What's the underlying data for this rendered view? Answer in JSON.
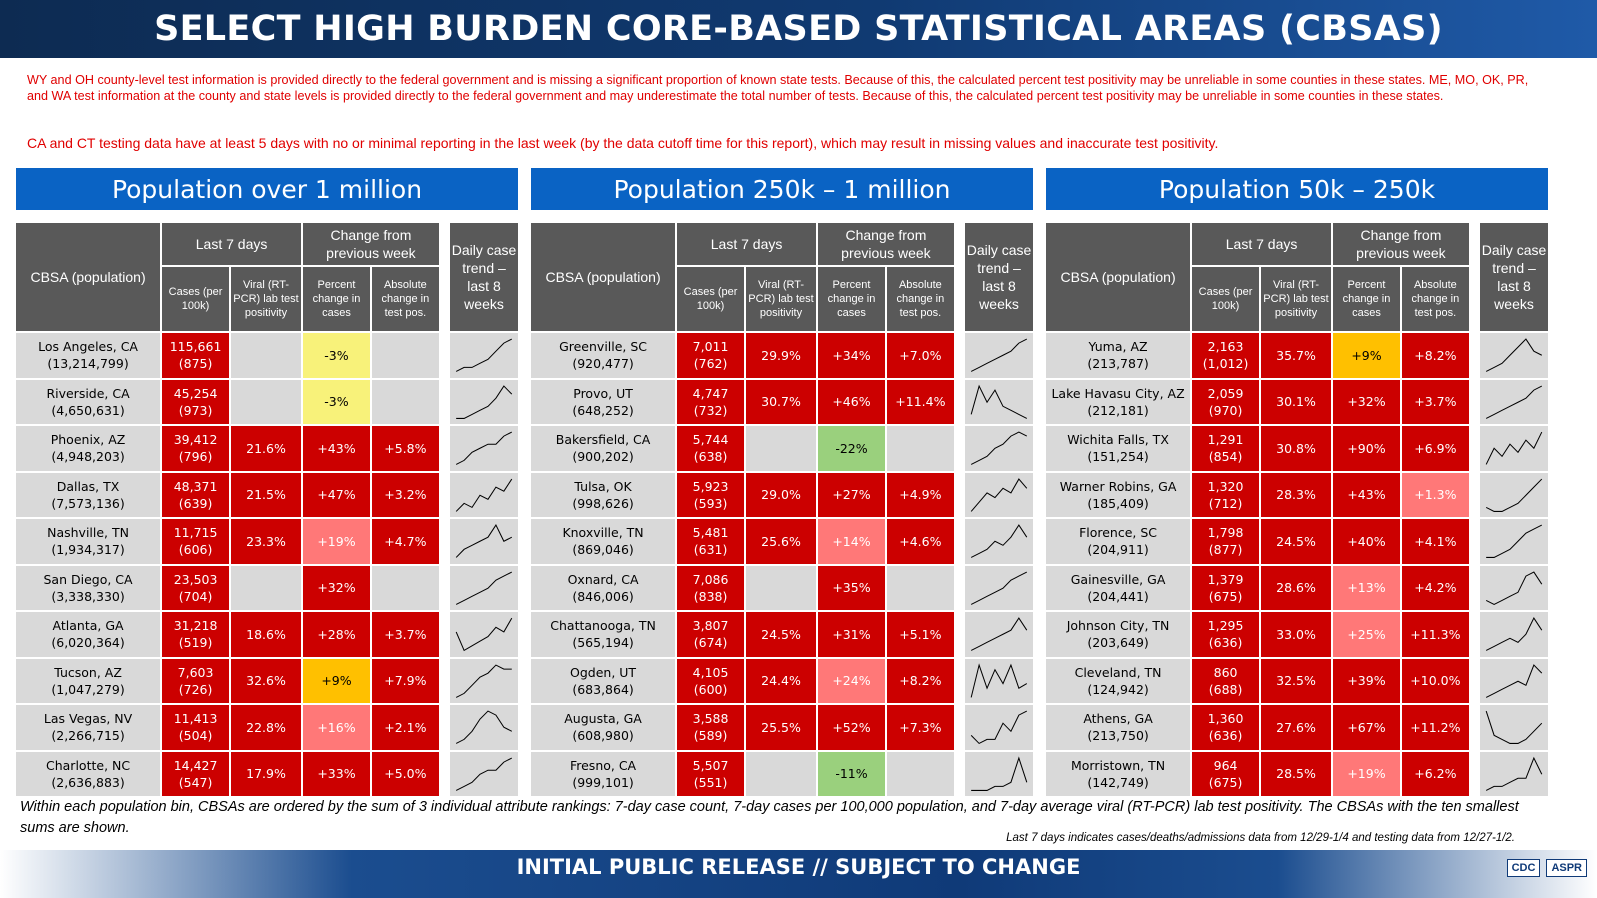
{
  "title": "SELECT HIGH BURDEN CORE-BASED STATISTICAL AREAS (CBSAS)",
  "note1": "WY and OH county-level test information is provided directly to the federal government and is missing a significant proportion of known state tests. Because of this, the calculated percent test positivity may be unreliable in some counties in these states. ME, MO, OK, PR, and WA test information at the county and state levels is provided directly to the federal government and may underestimate the total number of tests. Because of this, the calculated percent test positivity may be unreliable in some counties in these states.",
  "note2": "CA and CT testing data have at least 5 days with no or minimal reporting in the last week (by the data cutoff time for this report), which may result in missing values and inaccurate test positivity.",
  "headers": {
    "cbsa": "CBSA (population)",
    "last7": "Last 7 days",
    "change": "Change from previous week",
    "trend": "Daily case trend – last 8 weeks",
    "cases": "Cases (per 100k)",
    "viral": "Viral (RT-PCR) lab test positivity",
    "pct": "Percent change in cases",
    "abs": "Absolute change in test pos."
  },
  "colors": {
    "red": "#cc0000",
    "light_red": "#ff7878",
    "yellow": "#f8f27a",
    "orange": "#ffc000",
    "green": "#9ad07d",
    "grey": "#d9d9d9"
  },
  "panels": [
    {
      "title": "Population over 1 million",
      "rows": [
        {
          "name": "Los Angeles, CA",
          "pop": "(13,214,799)",
          "cases": "115,661",
          "per": "(875)",
          "pos": "",
          "pct": "-3%",
          "abs": "",
          "pct_color": "yellow",
          "abs_color": "grey",
          "pos_color": "grey",
          "trend": [
            1,
            2,
            2,
            3,
            4,
            6,
            8,
            9
          ]
        },
        {
          "name": "Riverside, CA",
          "pop": "(4,650,631)",
          "cases": "45,254",
          "per": "(973)",
          "pos": "",
          "pct": "-3%",
          "abs": "",
          "pct_color": "yellow",
          "abs_color": "grey",
          "pos_color": "grey",
          "trend": [
            1,
            1,
            2,
            3,
            4,
            6,
            9,
            7
          ]
        },
        {
          "name": "Phoenix, AZ",
          "pop": "(4,948,203)",
          "cases": "39,412",
          "per": "(796)",
          "pos": "21.6%",
          "pct": "+43%",
          "abs": "+5.8%",
          "pct_color": "red",
          "abs_color": "red",
          "pos_color": "red",
          "trend": [
            1,
            2,
            4,
            5,
            6,
            6,
            8,
            9
          ]
        },
        {
          "name": "Dallas, TX",
          "pop": "(7,573,136)",
          "cases": "48,371",
          "per": "(639)",
          "pos": "21.5%",
          "pct": "+47%",
          "abs": "+3.2%",
          "pct_color": "red",
          "abs_color": "red",
          "pos_color": "red",
          "trend": [
            1,
            3,
            2,
            5,
            4,
            7,
            6,
            9
          ]
        },
        {
          "name": "Nashville, TN",
          "pop": "(1,934,317)",
          "cases": "11,715",
          "per": "(606)",
          "pos": "23.3%",
          "pct": "+19%",
          "abs": "+4.7%",
          "pct_color": "light_red",
          "abs_color": "red",
          "pos_color": "red",
          "trend": [
            1,
            3,
            4,
            5,
            6,
            9,
            5,
            6
          ]
        },
        {
          "name": "San Diego, CA",
          "pop": "(3,338,330)",
          "cases": "23,503",
          "per": "(704)",
          "pos": "",
          "pct": "+32%",
          "abs": "",
          "pct_color": "red",
          "abs_color": "grey",
          "pos_color": "grey",
          "trend": [
            1,
            2,
            3,
            4,
            5,
            7,
            8,
            9
          ]
        },
        {
          "name": "Atlanta, GA",
          "pop": "(6,020,364)",
          "cases": "31,218",
          "per": "(519)",
          "pos": "18.6%",
          "pct": "+28%",
          "abs": "+3.7%",
          "pct_color": "red",
          "abs_color": "red",
          "pos_color": "red",
          "trend": [
            6,
            2,
            3,
            4,
            5,
            7,
            6,
            9
          ]
        },
        {
          "name": "Tucson, AZ",
          "pop": "(1,047,279)",
          "cases": "7,603",
          "per": "(726)",
          "pos": "32.6%",
          "pct": "+9%",
          "abs": "+7.9%",
          "pct_color": "orange",
          "abs_color": "red",
          "pos_color": "red",
          "trend": [
            1,
            2,
            4,
            6,
            7,
            9,
            8,
            8
          ]
        },
        {
          "name": "Las Vegas, NV",
          "pop": "(2,266,715)",
          "cases": "11,413",
          "per": "(504)",
          "pos": "22.8%",
          "pct": "+16%",
          "abs": "+2.1%",
          "pct_color": "light_red",
          "abs_color": "red",
          "pos_color": "red",
          "trend": [
            1,
            2,
            4,
            7,
            9,
            8,
            5,
            4
          ]
        },
        {
          "name": "Charlotte, NC",
          "pop": "(2,636,883)",
          "cases": "14,427",
          "per": "(547)",
          "pos": "17.9%",
          "pct": "+33%",
          "abs": "+5.0%",
          "pct_color": "red",
          "abs_color": "red",
          "pos_color": "red",
          "trend": [
            1,
            2,
            3,
            5,
            6,
            6,
            8,
            9
          ]
        }
      ]
    },
    {
      "title": "Population 250k – 1 million",
      "rows": [
        {
          "name": "Greenville, SC",
          "pop": "(920,477)",
          "cases": "7,011",
          "per": "(762)",
          "pos": "29.9%",
          "pct": "+34%",
          "abs": "+7.0%",
          "pct_color": "red",
          "abs_color": "red",
          "pos_color": "red",
          "trend": [
            1,
            2,
            3,
            4,
            5,
            6,
            8,
            9
          ]
        },
        {
          "name": "Provo, UT",
          "pop": "(648,252)",
          "cases": "4,747",
          "per": "(732)",
          "pos": "30.7%",
          "pct": "+46%",
          "abs": "+11.4%",
          "pct_color": "red",
          "abs_color": "red",
          "pos_color": "red",
          "trend": [
            2,
            9,
            5,
            8,
            4,
            3,
            2,
            1
          ]
        },
        {
          "name": "Bakersfield, CA",
          "pop": "(900,202)",
          "cases": "5,744",
          "per": "(638)",
          "pos": "",
          "pct": "-22%",
          "abs": "",
          "pct_color": "green",
          "abs_color": "grey",
          "pos_color": "grey",
          "trend": [
            1,
            2,
            3,
            5,
            6,
            8,
            9,
            8
          ]
        },
        {
          "name": "Tulsa, OK",
          "pop": "(998,626)",
          "cases": "5,923",
          "per": "(593)",
          "pos": "29.0%",
          "pct": "+27%",
          "abs": "+4.9%",
          "pct_color": "red",
          "abs_color": "red",
          "pos_color": "red",
          "trend": [
            1,
            3,
            5,
            4,
            6,
            5,
            8,
            6
          ]
        },
        {
          "name": "Knoxville, TN",
          "pop": "(869,046)",
          "cases": "5,481",
          "per": "(631)",
          "pos": "25.6%",
          "pct": "+14%",
          "abs": "+4.6%",
          "pct_color": "light_red",
          "abs_color": "red",
          "pos_color": "red",
          "trend": [
            1,
            2,
            3,
            5,
            4,
            6,
            9,
            6
          ]
        },
        {
          "name": "Oxnard, CA",
          "pop": "(846,006)",
          "cases": "7,086",
          "per": "(838)",
          "pos": "",
          "pct": "+35%",
          "abs": "",
          "pct_color": "red",
          "abs_color": "grey",
          "pos_color": "grey",
          "trend": [
            1,
            2,
            3,
            4,
            5,
            7,
            8,
            9
          ]
        },
        {
          "name": "Chattanooga, TN",
          "pop": "(565,194)",
          "cases": "3,807",
          "per": "(674)",
          "pos": "24.5%",
          "pct": "+31%",
          "abs": "+5.1%",
          "pct_color": "red",
          "abs_color": "red",
          "pos_color": "red",
          "trend": [
            1,
            2,
            3,
            4,
            5,
            6,
            9,
            6
          ]
        },
        {
          "name": "Ogden, UT",
          "pop": "(683,864)",
          "cases": "4,105",
          "per": "(600)",
          "pos": "24.4%",
          "pct": "+24%",
          "abs": "+8.2%",
          "pct_color": "light_red",
          "abs_color": "red",
          "pos_color": "red",
          "trend": [
            2,
            9,
            4,
            8,
            5,
            9,
            4,
            5
          ]
        },
        {
          "name": "Augusta, GA",
          "pop": "(608,980)",
          "cases": "3,588",
          "per": "(589)",
          "pos": "25.5%",
          "pct": "+52%",
          "abs": "+7.3%",
          "pct_color": "red",
          "abs_color": "red",
          "pos_color": "red",
          "trend": [
            3,
            1,
            2,
            2,
            6,
            4,
            8,
            9
          ]
        },
        {
          "name": "Fresno, CA",
          "pop": "(999,101)",
          "cases": "5,507",
          "per": "(551)",
          "pos": "",
          "pct": "-11%",
          "abs": "",
          "pct_color": "green",
          "abs_color": "grey",
          "pos_color": "grey",
          "trend": [
            1,
            1,
            1,
            2,
            2,
            3,
            9,
            3
          ]
        }
      ]
    },
    {
      "title": "Population 50k – 250k",
      "rows": [
        {
          "name": "Yuma, AZ",
          "pop": "(213,787)",
          "cases": "2,163",
          "per": "(1,012)",
          "pos": "35.7%",
          "pct": "+9%",
          "abs": "+8.2%",
          "pct_color": "orange",
          "abs_color": "red",
          "pos_color": "red",
          "trend": [
            1,
            2,
            3,
            5,
            7,
            9,
            6,
            5
          ]
        },
        {
          "name": "Lake Havasu City, AZ",
          "pop": "(212,181)",
          "cases": "2,059",
          "per": "(970)",
          "pos": "30.1%",
          "pct": "+32%",
          "abs": "+3.7%",
          "pct_color": "red",
          "abs_color": "red",
          "pos_color": "red",
          "trend": [
            1,
            2,
            3,
            4,
            5,
            6,
            8,
            9
          ]
        },
        {
          "name": "Wichita Falls, TX",
          "pop": "(151,254)",
          "cases": "1,291",
          "per": "(854)",
          "pos": "30.8%",
          "pct": "+90%",
          "abs": "+6.9%",
          "pct_color": "red",
          "abs_color": "red",
          "pos_color": "red",
          "trend": [
            1,
            5,
            3,
            6,
            4,
            7,
            5,
            9
          ]
        },
        {
          "name": "Warner Robins, GA",
          "pop": "(185,409)",
          "cases": "1,320",
          "per": "(712)",
          "pos": "28.3%",
          "pct": "+43%",
          "abs": "+1.3%",
          "pct_color": "red",
          "abs_color": "light_red",
          "pos_color": "red",
          "trend": [
            2,
            1,
            1,
            2,
            3,
            5,
            7,
            9
          ]
        },
        {
          "name": "Florence, SC",
          "pop": "(204,911)",
          "cases": "1,798",
          "per": "(877)",
          "pos": "24.5%",
          "pct": "+40%",
          "abs": "+4.1%",
          "pct_color": "red",
          "abs_color": "red",
          "pos_color": "red",
          "trend": [
            1,
            1,
            2,
            3,
            5,
            7,
            8,
            9
          ]
        },
        {
          "name": "Gainesville, GA",
          "pop": "(204,441)",
          "cases": "1,379",
          "per": "(675)",
          "pos": "28.6%",
          "pct": "+13%",
          "abs": "+4.2%",
          "pct_color": "light_red",
          "abs_color": "red",
          "pos_color": "red",
          "trend": [
            2,
            1,
            2,
            3,
            4,
            8,
            9,
            6
          ]
        },
        {
          "name": "Johnson City, TN",
          "pop": "(203,649)",
          "cases": "1,295",
          "per": "(636)",
          "pos": "33.0%",
          "pct": "+25%",
          "abs": "+11.3%",
          "pct_color": "light_red",
          "abs_color": "red",
          "pos_color": "red",
          "trend": [
            1,
            2,
            3,
            4,
            3,
            5,
            9,
            6
          ]
        },
        {
          "name": "Cleveland, TN",
          "pop": "(124,942)",
          "cases": "860",
          "per": "(688)",
          "pos": "32.5%",
          "pct": "+39%",
          "abs": "+10.0%",
          "pct_color": "red",
          "abs_color": "red",
          "pos_color": "red",
          "trend": [
            1,
            2,
            3,
            4,
            5,
            4,
            9,
            7
          ]
        },
        {
          "name": "Athens, GA",
          "pop": "(213,750)",
          "cases": "1,360",
          "per": "(636)",
          "pos": "27.6%",
          "pct": "+67%",
          "abs": "+11.2%",
          "pct_color": "red",
          "abs_color": "red",
          "pos_color": "red",
          "trend": [
            9,
            3,
            2,
            1,
            1,
            2,
            4,
            6
          ]
        },
        {
          "name": "Morristown, TN",
          "pop": "(142,749)",
          "cases": "964",
          "per": "(675)",
          "pos": "28.5%",
          "pct": "+19%",
          "abs": "+6.2%",
          "pct_color": "light_red",
          "abs_color": "red",
          "pos_color": "red",
          "trend": [
            1,
            2,
            2,
            3,
            4,
            4,
            9,
            5
          ]
        }
      ]
    }
  ],
  "footnote1": "Within each population bin, CBSAs are ordered by the sum of 3 individual attribute rankings: 7-day case count, 7-day cases per 100,000 population, and 7-day average viral (RT-PCR) lab test positivity. The CBSAs with the ten smallest sums are shown.",
  "footnote2": "Last 7 days indicates cases/deaths/admissions data from 12/29-1/4 and testing data from 12/27-1/2.",
  "bottom_banner": "INITIAL PUBLIC RELEASE // SUBJECT TO CHANGE",
  "logos": [
    "CDC",
    "ASPR"
  ]
}
